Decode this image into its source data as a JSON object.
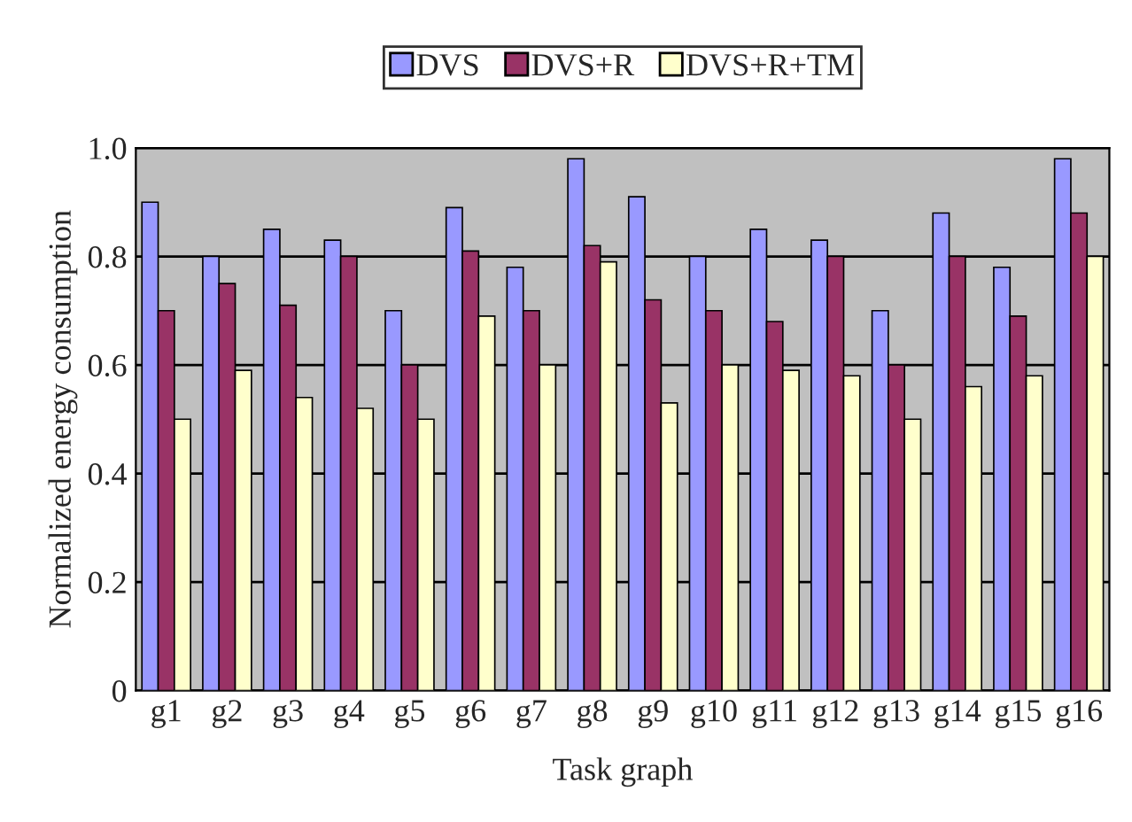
{
  "chart_data": {
    "type": "bar",
    "xlabel": "Task graph",
    "ylabel": "Normalized energy consumption",
    "categories": [
      "g1",
      "g2",
      "g3",
      "g4",
      "g5",
      "g6",
      "g7",
      "g8",
      "g9",
      "g10",
      "g11",
      "g12",
      "g13",
      "g14",
      "g15",
      "g16"
    ],
    "series": [
      {
        "name": "DVS",
        "color": "#9999ff",
        "values": [
          0.9,
          0.8,
          0.85,
          0.83,
          0.7,
          0.89,
          0.78,
          0.98,
          0.91,
          0.8,
          0.85,
          0.83,
          0.7,
          0.88,
          0.78,
          0.98
        ]
      },
      {
        "name": "DVS+R",
        "color": "#993366",
        "values": [
          0.7,
          0.75,
          0.71,
          0.8,
          0.6,
          0.81,
          0.7,
          0.82,
          0.72,
          0.7,
          0.68,
          0.8,
          0.6,
          0.8,
          0.69,
          0.88
        ]
      },
      {
        "name": "DVS+R+TM",
        "color": "#ffffcc",
        "values": [
          0.5,
          0.59,
          0.54,
          0.52,
          0.5,
          0.69,
          0.6,
          0.79,
          0.53,
          0.6,
          0.59,
          0.58,
          0.5,
          0.56,
          0.58,
          0.8
        ]
      }
    ],
    "ylim": [
      0,
      1.0
    ],
    "yticks": [
      0,
      {
        "value": 0.2,
        "label": "0.2"
      },
      {
        "value": 0.4,
        "label": "0.4"
      },
      {
        "value": 0.6,
        "label": "0.6"
      },
      {
        "value": 0.8,
        "label": "0.8"
      },
      {
        "value": 1.0,
        "label": "1.0"
      }
    ],
    "grid": "y",
    "legend": "top"
  }
}
